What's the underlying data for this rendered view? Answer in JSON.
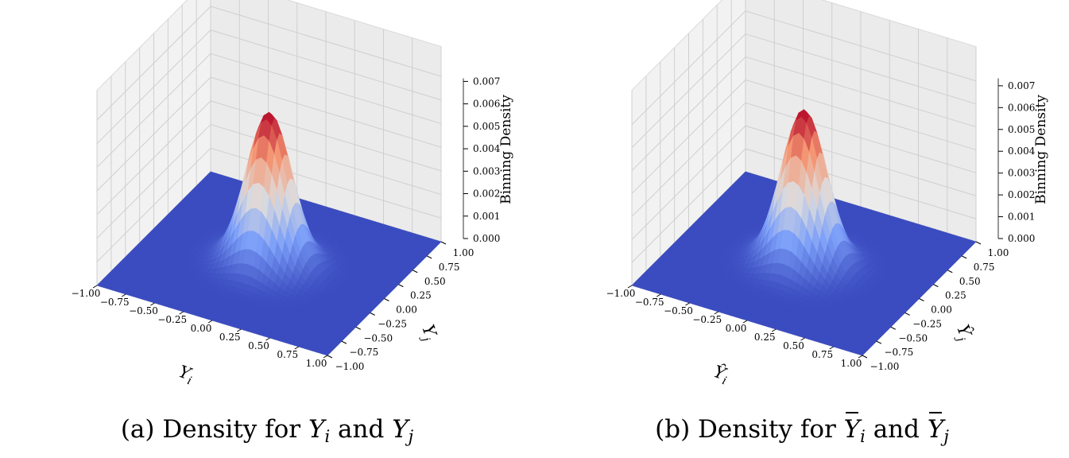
{
  "chart_data": [
    {
      "type": "surface3d",
      "caption": {
        "prefix": "(a) Density for",
        "var1": "Y",
        "sub1": "i",
        "and": "and",
        "var2": "Y",
        "sub2": "j",
        "hat": false
      },
      "xlabel": {
        "var": "Y",
        "sub": "i"
      },
      "ylabel": {
        "var": "Y",
        "sub": "j"
      },
      "zlabel": "Binning Density",
      "x_ticks": [
        "−1.00",
        "−0.75",
        "−0.50",
        "−0.25",
        "0.00",
        "0.25",
        "0.50",
        "0.75",
        "1.00"
      ],
      "y_ticks": [
        "−1.00",
        "−0.75",
        "−0.50",
        "−0.25",
        "0.00",
        "0.25",
        "0.50",
        "0.75",
        "1.00"
      ],
      "z_ticks": [
        "0.000",
        "0.001",
        "0.002",
        "0.003",
        "0.004",
        "0.005",
        "0.006",
        "0.007"
      ],
      "xlim": [
        -1,
        1
      ],
      "ylim": [
        -1,
        1
      ],
      "zlim": [
        0,
        0.007
      ],
      "peak": {
        "x": 0,
        "y": 0,
        "z": 0.0064
      },
      "spread_sigma": 0.18,
      "colormap": "coolwarm",
      "grid": true
    },
    {
      "type": "surface3d",
      "caption": {
        "prefix": "(b) Density for",
        "var1": "Y",
        "sub1": "i",
        "and": "and",
        "var2": "Y",
        "sub2": "j",
        "hat": true
      },
      "xlabel": {
        "var": "Ŷ",
        "sub": "i"
      },
      "ylabel": {
        "var": "Ŷ",
        "sub": "j"
      },
      "zlabel": "Binning Density",
      "x_ticks": [
        "−1.00",
        "−0.75",
        "−0.50",
        "−0.25",
        "0.00",
        "0.25",
        "0.50",
        "0.75",
        "1.00"
      ],
      "y_ticks": [
        "−1.00",
        "−0.75",
        "−0.50",
        "−0.25",
        "0.00",
        "0.25",
        "0.50",
        "0.75",
        "1.00"
      ],
      "z_ticks": [
        "0.000",
        "0.001",
        "0.002",
        "0.003",
        "0.004",
        "0.005",
        "0.006",
        "0.007"
      ],
      "xlim": [
        -1,
        1
      ],
      "ylim": [
        -1,
        1
      ],
      "zlim": [
        0,
        0.0072
      ],
      "peak": {
        "x": 0,
        "y": 0,
        "z": 0.0067
      },
      "spread_sigma": 0.18,
      "colormap": "coolwarm",
      "grid": true
    }
  ]
}
